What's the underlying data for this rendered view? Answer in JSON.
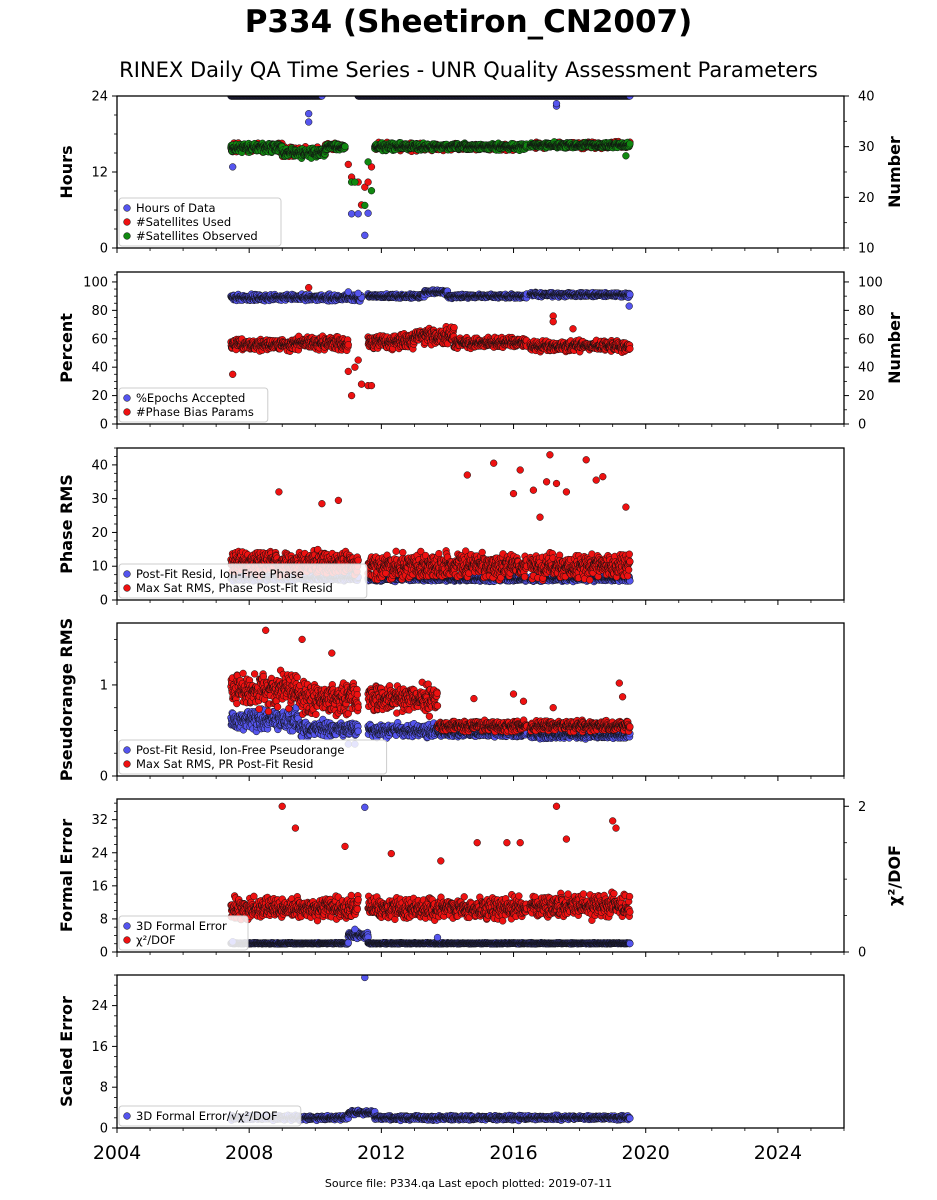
{
  "title": "P334 (Sheetiron_CN2007)",
  "subtitle": "RINEX Daily QA Time Series - UNR Quality Assessment Parameters",
  "footer": "Source file: P334.qa Last epoch plotted: 2019-07-11",
  "colors": {
    "blue": "#5555ee",
    "red": "#ee1111",
    "green": "#118811"
  },
  "chart_data": [
    {
      "type": "scatter",
      "xlim": [
        2004,
        2026
      ],
      "xticks": [
        2004,
        2008,
        2012,
        2016,
        2020,
        2024
      ],
      "ylabel": "Hours",
      "ylim": [
        0,
        24
      ],
      "yticks": [
        0,
        12,
        24
      ],
      "y2label": "Number",
      "y2lim": [
        10,
        40
      ],
      "y2ticks": [
        10,
        20,
        30,
        40
      ],
      "legend": "lower-left",
      "series": [
        {
          "name": "Hours of Data",
          "color": "blue",
          "axis": "left",
          "segments": [
            [
              2007.45,
              2010.2,
              24,
              0
            ],
            [
              2011.3,
              2013.7,
              24,
              0
            ],
            [
              2013.7,
              2019.52,
              24,
              0
            ]
          ],
          "outliers": [
            [
              2007.5,
              12.8
            ],
            [
              2009.8,
              21.2
            ],
            [
              2009.8,
              19.9
            ],
            [
              2011.1,
              5.4
            ],
            [
              2011.3,
              5.4
            ],
            [
              2011.5,
              2.0
            ],
            [
              2011.6,
              5.5
            ],
            [
              2017.3,
              22.4
            ],
            [
              2017.3,
              22.8
            ]
          ]
        },
        {
          "name": "#Satellites Used",
          "color": "red",
          "axis": "right",
          "segments": [
            [
              2007.45,
              2009.0,
              29.8,
              1.2
            ],
            [
              2009.0,
              2010.3,
              29.0,
              1.2
            ],
            [
              2010.3,
              2010.9,
              30.0,
              0.8
            ],
            [
              2011.8,
              2013.3,
              30.0,
              1.0
            ],
            [
              2013.3,
              2016.4,
              29.9,
              0.8
            ],
            [
              2016.5,
              2019.52,
              30.3,
              0.8
            ]
          ],
          "outliers": [
            [
              2007.5,
              29.0
            ],
            [
              2009.7,
              30.0
            ],
            [
              2011.0,
              26.5
            ],
            [
              2011.1,
              24.0
            ],
            [
              2011.3,
              23.0
            ],
            [
              2011.4,
              18.5
            ],
            [
              2011.5,
              22.0
            ],
            [
              2011.6,
              23.0
            ],
            [
              2011.7,
              26.0
            ]
          ]
        },
        {
          "name": "#Satellites Observed",
          "color": "green",
          "axis": "right",
          "segments": [
            [
              2007.45,
              2009.0,
              29.8,
              1.2
            ],
            [
              2009.0,
              2010.3,
              28.8,
              1.2
            ],
            [
              2010.3,
              2010.9,
              30.0,
              0.8
            ],
            [
              2011.8,
              2013.3,
              30.0,
              1.0
            ],
            [
              2013.3,
              2016.4,
              30.0,
              0.8
            ],
            [
              2016.5,
              2019.52,
              30.3,
              0.7
            ]
          ],
          "outliers": [
            [
              2011.1,
              23.0
            ],
            [
              2011.2,
              23.0
            ],
            [
              2011.5,
              18.4
            ],
            [
              2011.6,
              27.0
            ],
            [
              2011.7,
              21.3
            ],
            [
              2019.4,
              28.2
            ]
          ]
        }
      ]
    },
    {
      "type": "scatter",
      "xlim": [
        2004,
        2026
      ],
      "xticks": [
        2004,
        2008,
        2012,
        2016,
        2020,
        2024
      ],
      "ylabel": "Percent",
      "ylim": [
        0,
        107
      ],
      "yticks": [
        0,
        20,
        40,
        60,
        80,
        100
      ],
      "y2label": "Number",
      "y2lim": [
        0,
        107
      ],
      "y2ticks": [
        0,
        20,
        40,
        60,
        80,
        100
      ],
      "legend": "lower-left",
      "series": [
        {
          "name": "%Epochs Accepted",
          "color": "blue",
          "axis": "left",
          "segments": [
            [
              2007.45,
              2010.5,
              89,
              3
            ],
            [
              2010.5,
              2011.4,
              89,
              3
            ],
            [
              2011.6,
              2013.3,
              90,
              2
            ],
            [
              2013.3,
              2014.0,
              93,
              2
            ],
            [
              2014.0,
              2016.4,
              90,
              2
            ],
            [
              2016.5,
              2019.52,
              91,
              2
            ]
          ],
          "outliers": [
            [
              2011.0,
              93
            ],
            [
              2011.3,
              92
            ],
            [
              2019.5,
              83
            ]
          ]
        },
        {
          "name": "#Phase Bias Params",
          "color": "red",
          "axis": "right",
          "segments": [
            [
              2007.45,
              2009.5,
              56,
              6
            ],
            [
              2009.5,
              2011.0,
              57,
              6
            ],
            [
              2011.6,
              2013.0,
              58,
              7
            ],
            [
              2013.0,
              2014.2,
              62,
              8
            ],
            [
              2014.2,
              2016.4,
              57,
              5
            ],
            [
              2016.5,
              2019.52,
              55,
              5
            ]
          ],
          "outliers": [
            [
              2007.5,
              35
            ],
            [
              2009.8,
              96
            ],
            [
              2011.0,
              37
            ],
            [
              2011.1,
              20
            ],
            [
              2011.2,
              40
            ],
            [
              2011.3,
              45
            ],
            [
              2011.4,
              28
            ],
            [
              2011.6,
              27
            ],
            [
              2011.7,
              27
            ],
            [
              2017.2,
              76
            ],
            [
              2017.2,
              72
            ],
            [
              2017.8,
              67
            ]
          ]
        }
      ]
    },
    {
      "type": "scatter",
      "xlim": [
        2004,
        2026
      ],
      "xticks": [
        2004,
        2008,
        2012,
        2016,
        2020,
        2024
      ],
      "ylabel": "Phase RMS",
      "ylim": [
        0,
        45
      ],
      "yticks": [
        0,
        10,
        20,
        30,
        40
      ],
      "legend": "lower-left",
      "series": [
        {
          "name": "Post-Fit Resid, Ion-Free Phase",
          "color": "blue",
          "axis": "left",
          "segments": [
            [
              2007.45,
              2011.3,
              6.5,
              1.0
            ],
            [
              2011.6,
              2016.4,
              6.3,
              1.0
            ],
            [
              2016.5,
              2019.52,
              6.3,
              1.0
            ]
          ],
          "outliers": []
        },
        {
          "name": "Max Sat RMS, Phase Post-Fit Resid",
          "color": "red",
          "axis": "left",
          "segments": [
            [
              2007.45,
              2011.3,
              11,
              5
            ],
            [
              2011.6,
              2016.4,
              10,
              5
            ],
            [
              2016.5,
              2019.52,
              10,
              5
            ]
          ],
          "outliers": [
            [
              2008.9,
              32
            ],
            [
              2010.2,
              28.5
            ],
            [
              2010.7,
              29.5
            ],
            [
              2014.6,
              37
            ],
            [
              2015.4,
              40.5
            ],
            [
              2016.2,
              38.5
            ],
            [
              2016.0,
              31.5
            ],
            [
              2016.6,
              32.5
            ],
            [
              2016.8,
              24.5
            ],
            [
              2017.1,
              43
            ],
            [
              2017.0,
              35
            ],
            [
              2017.3,
              34.5
            ],
            [
              2017.6,
              32
            ],
            [
              2018.2,
              41.5
            ],
            [
              2018.5,
              35.5
            ],
            [
              2018.7,
              36.5
            ],
            [
              2019.4,
              27.5
            ]
          ]
        }
      ]
    },
    {
      "type": "scatter",
      "xlim": [
        2004,
        2026
      ],
      "xticks": [
        2004,
        2008,
        2012,
        2016,
        2020,
        2024
      ],
      "ylabel": "Pseudorange RMS",
      "ylim": [
        0,
        1.68
      ],
      "yticks": [
        0,
        1
      ],
      "legend": "lower-left",
      "series": [
        {
          "name": "Post-Fit Resid, Ion-Free Pseudorange",
          "color": "blue",
          "axis": "left",
          "segments": [
            [
              2007.45,
              2009.5,
              0.62,
              0.15
            ],
            [
              2009.5,
              2011.3,
              0.52,
              0.12
            ],
            [
              2011.6,
              2013.7,
              0.5,
              0.1
            ],
            [
              2013.7,
              2016.4,
              0.47,
              0.05
            ],
            [
              2016.5,
              2019.52,
              0.45,
              0.05
            ]
          ],
          "outliers": [
            [
              2011.0,
              0.35
            ],
            [
              2011.2,
              0.35
            ]
          ]
        },
        {
          "name": "Max Sat RMS, PR Post-Fit Resid",
          "color": "red",
          "axis": "left",
          "segments": [
            [
              2007.45,
              2009.5,
              0.95,
              0.25
            ],
            [
              2009.5,
              2011.3,
              0.85,
              0.25
            ],
            [
              2011.6,
              2013.7,
              0.85,
              0.2
            ],
            [
              2013.7,
              2016.4,
              0.55,
              0.08
            ],
            [
              2016.5,
              2019.52,
              0.55,
              0.08
            ]
          ],
          "outliers": [
            [
              2008.5,
              1.6
            ],
            [
              2009.6,
              1.5
            ],
            [
              2010.5,
              1.35
            ],
            [
              2014.8,
              0.85
            ],
            [
              2016.0,
              0.9
            ],
            [
              2016.3,
              0.82
            ],
            [
              2017.2,
              0.75
            ],
            [
              2019.2,
              1.02
            ],
            [
              2019.3,
              0.87
            ]
          ]
        }
      ]
    },
    {
      "type": "scatter",
      "xlim": [
        2004,
        2026
      ],
      "xticks": [
        2004,
        2008,
        2012,
        2016,
        2020,
        2024
      ],
      "ylabel": "Formal Error",
      "ylim": [
        0,
        37
      ],
      "yticks": [
        0,
        8,
        16,
        24,
        32
      ],
      "y2label": "χ²/DOF",
      "y2lim": [
        0,
        2.1
      ],
      "y2ticks": [
        0,
        2
      ],
      "legend": "lower-left",
      "series": [
        {
          "name": "3D Formal Error",
          "color": "blue",
          "axis": "left",
          "segments": [
            [
              2007.45,
              2011.0,
              2.1,
              0.2
            ],
            [
              2011.0,
              2011.6,
              4.0,
              1.0
            ],
            [
              2011.6,
              2019.52,
              2.1,
              0.2
            ]
          ],
          "outliers": [
            [
              2007.5,
              2.5
            ],
            [
              2011.5,
              35
            ],
            [
              2011.2,
              5.5
            ],
            [
              2013.7,
              3.5
            ]
          ]
        },
        {
          "name": "χ²/DOF",
          "color": "red",
          "axis": "right",
          "segments": [
            [
              2007.45,
              2011.3,
              0.6,
              0.2
            ],
            [
              2011.6,
              2016.4,
              0.6,
              0.2
            ],
            [
              2016.5,
              2019.52,
              0.62,
              0.22
            ]
          ],
          "outliers": [
            [
              2009.0,
              2.0
            ],
            [
              2009.4,
              1.7
            ],
            [
              2010.9,
              1.45
            ],
            [
              2012.3,
              1.35
            ],
            [
              2013.8,
              1.25
            ],
            [
              2014.9,
              1.5
            ],
            [
              2015.8,
              1.5
            ],
            [
              2016.2,
              1.5
            ],
            [
              2017.3,
              2.0
            ],
            [
              2017.6,
              1.55
            ],
            [
              2019.0,
              1.8
            ],
            [
              2019.1,
              1.7
            ]
          ]
        }
      ]
    },
    {
      "type": "scatter",
      "xlim": [
        2004,
        2026
      ],
      "xticks": [
        2004,
        2008,
        2012,
        2016,
        2020,
        2024
      ],
      "xticklabels": [
        "2004",
        "2008",
        "2012",
        "2016",
        "2020",
        "2024"
      ],
      "ylabel": "Scaled Error",
      "ylim": [
        0,
        30
      ],
      "yticks": [
        0,
        8,
        16,
        24
      ],
      "legend": "lower-left",
      "series": [
        {
          "name": "3D Formal Error/√χ²/DOF",
          "color": "blue",
          "axis": "left",
          "segments": [
            [
              2007.45,
              2011.0,
              2.0,
              0.6
            ],
            [
              2011.0,
              2011.8,
              3.0,
              0.6
            ],
            [
              2011.8,
              2019.52,
              2.0,
              0.6
            ]
          ],
          "outliers": [
            [
              2011.5,
              29.5
            ]
          ]
        }
      ]
    }
  ]
}
